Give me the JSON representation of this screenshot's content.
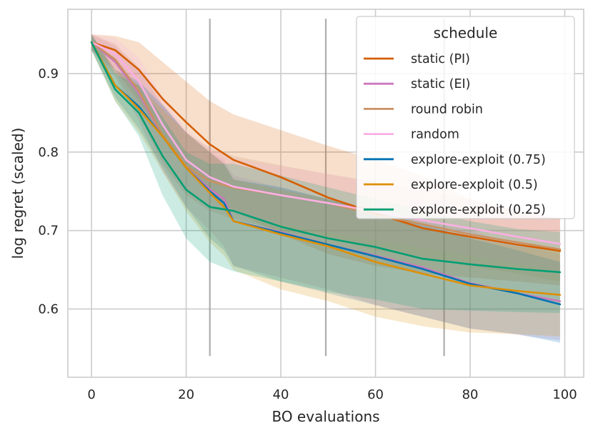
{
  "chart_data": {
    "type": "line",
    "xlabel": "BO evaluations",
    "ylabel": "log regret (scaled)",
    "xlim": [
      -5,
      104
    ],
    "ylim": [
      0.513,
      0.982
    ],
    "xticks": [
      0,
      20,
      40,
      60,
      80,
      100
    ],
    "yticks": [
      0.6,
      0.7,
      0.8,
      0.9
    ],
    "xtick_labels": [
      "0",
      "20",
      "40",
      "60",
      "80",
      "100"
    ],
    "ytick_labels": [
      "0.6",
      "0.7",
      "0.8",
      "0.9"
    ],
    "grid": true,
    "vlines": [
      {
        "x": 25,
        "ymin": 0.54,
        "ymax": 0.97
      },
      {
        "x": 49.5,
        "ymin": 0.54,
        "ymax": 0.97
      },
      {
        "x": 74.5,
        "ymin": 0.54,
        "ymax": 0.97
      }
    ],
    "legend": {
      "title": "schedule",
      "placement": "top-right"
    },
    "series": [
      {
        "name": "static (PI)",
        "color": "#d55e00",
        "x": [
          0,
          5,
          10,
          15,
          20,
          25,
          30,
          40,
          50,
          60,
          70,
          80,
          90,
          99
        ],
        "y": [
          0.94,
          0.93,
          0.905,
          0.868,
          0.838,
          0.81,
          0.79,
          0.768,
          0.742,
          0.722,
          0.703,
          0.692,
          0.682,
          0.674
        ],
        "lower": [
          0.93,
          0.905,
          0.865,
          0.82,
          0.78,
          0.75,
          0.725,
          0.695,
          0.67,
          0.655,
          0.645,
          0.64,
          0.635,
          0.63
        ],
        "upper": [
          0.95,
          0.948,
          0.94,
          0.915,
          0.89,
          0.865,
          0.848,
          0.828,
          0.808,
          0.79,
          0.77,
          0.74,
          0.725,
          0.715
        ]
      },
      {
        "name": "static (EI)",
        "color": "#cc78bc",
        "x": [
          0,
          5,
          10,
          15,
          20,
          25,
          28,
          30,
          40,
          50,
          60,
          70,
          80,
          90,
          99
        ],
        "y": [
          0.94,
          0.915,
          0.875,
          0.82,
          0.78,
          0.753,
          0.74,
          0.712,
          0.698,
          0.682,
          0.668,
          0.653,
          0.633,
          0.62,
          0.61
        ],
        "lower": [
          0.93,
          0.895,
          0.84,
          0.775,
          0.73,
          0.7,
          0.68,
          0.655,
          0.64,
          0.625,
          0.605,
          0.59,
          0.575,
          0.567,
          0.56
        ],
        "upper": [
          0.95,
          0.935,
          0.905,
          0.86,
          0.825,
          0.8,
          0.79,
          0.77,
          0.755,
          0.74,
          0.727,
          0.712,
          0.7,
          0.682,
          0.67
        ]
      },
      {
        "name": "round robin",
        "color": "#ca9161",
        "x": [
          0,
          5,
          10,
          15,
          20,
          25,
          30,
          40,
          50,
          60,
          70,
          80,
          90,
          99
        ],
        "y": [
          0.94,
          0.918,
          0.878,
          0.822,
          0.782,
          0.763,
          0.755,
          0.745,
          0.735,
          0.72,
          0.708,
          0.695,
          0.685,
          0.676
        ],
        "lower": [
          0.93,
          0.9,
          0.848,
          0.785,
          0.745,
          0.725,
          0.715,
          0.7,
          0.69,
          0.675,
          0.665,
          0.655,
          0.645,
          0.635
        ],
        "upper": [
          0.95,
          0.938,
          0.908,
          0.862,
          0.825,
          0.805,
          0.795,
          0.783,
          0.772,
          0.762,
          0.752,
          0.74,
          0.725,
          0.715
        ]
      },
      {
        "name": "random",
        "color": "#fbafe4",
        "x": [
          0,
          5,
          10,
          15,
          20,
          25,
          30,
          40,
          50,
          60,
          70,
          80,
          90,
          99
        ],
        "y": [
          0.94,
          0.925,
          0.89,
          0.835,
          0.79,
          0.768,
          0.756,
          0.745,
          0.735,
          0.724,
          0.713,
          0.703,
          0.692,
          0.683
        ],
        "lower": [
          0.93,
          0.905,
          0.86,
          0.8,
          0.755,
          0.733,
          0.72,
          0.708,
          0.698,
          0.688,
          0.678,
          0.668,
          0.658,
          0.648
        ],
        "upper": [
          0.95,
          0.945,
          0.92,
          0.87,
          0.828,
          0.805,
          0.792,
          0.782,
          0.772,
          0.762,
          0.752,
          0.74,
          0.728,
          0.718
        ]
      },
      {
        "name": "explore-exploit (0.75)",
        "color": "#0173b2",
        "x": [
          0,
          5,
          10,
          15,
          20,
          25,
          28,
          30,
          40,
          50,
          60,
          70,
          80,
          90,
          99
        ],
        "y": [
          0.94,
          0.885,
          0.858,
          0.82,
          0.78,
          0.75,
          0.735,
          0.712,
          0.697,
          0.682,
          0.667,
          0.651,
          0.632,
          0.62,
          0.606
        ],
        "lower": [
          0.93,
          0.87,
          0.83,
          0.78,
          0.73,
          0.69,
          0.675,
          0.655,
          0.635,
          0.62,
          0.605,
          0.59,
          0.575,
          0.568,
          0.557
        ],
        "upper": [
          0.95,
          0.905,
          0.89,
          0.86,
          0.825,
          0.8,
          0.785,
          0.765,
          0.755,
          0.74,
          0.725,
          0.708,
          0.69,
          0.675,
          0.66
        ]
      },
      {
        "name": "explore-exploit (0.5)",
        "color": "#de8f05",
        "x": [
          0,
          5,
          10,
          15,
          20,
          25,
          28,
          30,
          40,
          50,
          60,
          70,
          80,
          90,
          99
        ],
        "y": [
          0.94,
          0.885,
          0.855,
          0.82,
          0.78,
          0.748,
          0.73,
          0.712,
          0.695,
          0.68,
          0.66,
          0.645,
          0.63,
          0.623,
          0.618
        ],
        "lower": [
          0.93,
          0.865,
          0.825,
          0.775,
          0.725,
          0.685,
          0.668,
          0.65,
          0.625,
          0.61,
          0.59,
          0.578,
          0.57,
          0.568,
          0.565
        ],
        "upper": [
          0.95,
          0.905,
          0.885,
          0.855,
          0.825,
          0.8,
          0.785,
          0.765,
          0.752,
          0.74,
          0.722,
          0.705,
          0.69,
          0.68,
          0.675
        ]
      },
      {
        "name": "explore-exploit (0.25)",
        "color": "#029e73",
        "x": [
          0,
          5,
          10,
          15,
          20,
          25,
          30,
          40,
          50,
          60,
          70,
          80,
          90,
          99
        ],
        "y": [
          0.94,
          0.88,
          0.85,
          0.795,
          0.752,
          0.73,
          0.725,
          0.705,
          0.69,
          0.679,
          0.664,
          0.657,
          0.651,
          0.647
        ],
        "lower": [
          0.93,
          0.865,
          0.82,
          0.745,
          0.69,
          0.66,
          0.648,
          0.635,
          0.622,
          0.612,
          0.6,
          0.598,
          0.596,
          0.595
        ],
        "upper": [
          0.95,
          0.9,
          0.885,
          0.845,
          0.8,
          0.785,
          0.785,
          0.77,
          0.755,
          0.74,
          0.725,
          0.712,
          0.702,
          0.698
        ]
      }
    ]
  }
}
